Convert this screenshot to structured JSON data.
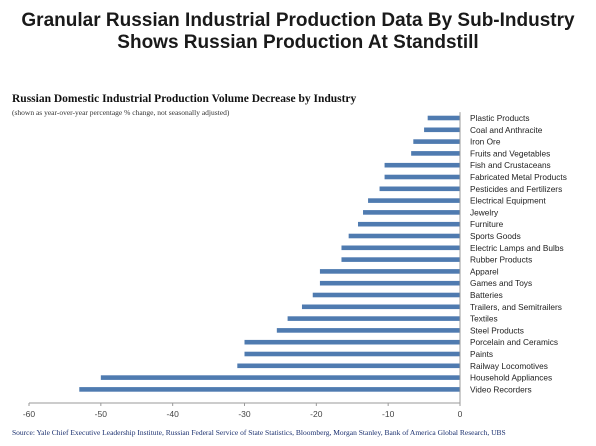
{
  "headline": {
    "line1": "Granular Russian Industrial Production Data By Sub-Industry",
    "line2": "Shows Russian Production At Standstill"
  },
  "source": "Source: Yale Chief Executive Leadership Institute, Russian Federal Service of State Statistics, Bloomberg, Morgan Stanley, Bank of America Global Research, UBS",
  "colors": {
    "bar": "#4f7bb0",
    "axis": "#9a9a9a"
  },
  "chart_data": {
    "type": "bar",
    "orientation": "horizontal",
    "title": "Russian Domestic Industrial Production Volume Decrease by Industry",
    "subtitle": "(shown as year-over-year percentage % change, not seasonally adjusted)",
    "xlim": [
      -60,
      0
    ],
    "xticks": [
      -60,
      -50,
      -40,
      -30,
      -20,
      -10,
      0
    ],
    "grid": false,
    "categories": [
      "Plastic Products",
      "Coal and Anthracite",
      "Iron Ore",
      "Fruits and Vegetables",
      "Fish and Crustaceans",
      "Fabricated Metal Products",
      "Pesticides and Fertilizers",
      "Electrical Equipment",
      "Jewelry",
      "Furniture",
      "Sports Goods",
      "Electric Lamps and Bulbs",
      "Rubber Products",
      "Apparel",
      "Games and Toys",
      "Batteries",
      "Trailers, and Semitrailers",
      "Textiles",
      "Steel Products",
      "Porcelain and Ceramics",
      "Paints",
      "Railway Locomotives",
      "Household Appliances",
      "Video Recorders"
    ],
    "values": [
      -4.5,
      -5,
      -6.5,
      -6.8,
      -10.5,
      -10.5,
      -11.2,
      -12.8,
      -13.5,
      -14.2,
      -15.5,
      -16.5,
      -16.5,
      -19.5,
      -19.5,
      -20.5,
      -22,
      -24,
      -25.5,
      -30,
      -30,
      -31,
      -50,
      -53
    ]
  }
}
